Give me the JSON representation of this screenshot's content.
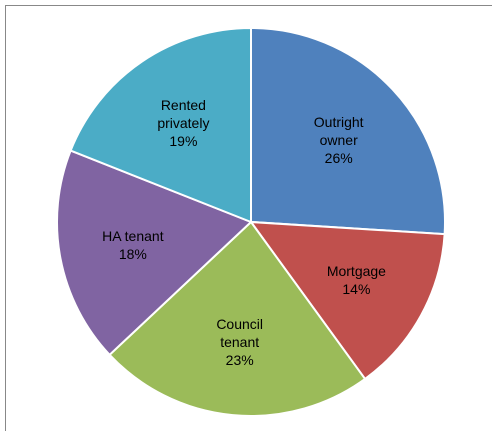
{
  "chart_data": {
    "type": "pie",
    "categories": [
      "Outright owner",
      "Mortgage",
      "Council tenant",
      "HA tenant",
      "Rented privately"
    ],
    "values": [
      26,
      14,
      23,
      18,
      19
    ],
    "value_labels": [
      "26%",
      "14%",
      "23%",
      "18%",
      "19%"
    ],
    "colors": [
      "#4f81bd",
      "#c0504d",
      "#9bbb59",
      "#8064a2",
      "#4bacc6"
    ]
  }
}
